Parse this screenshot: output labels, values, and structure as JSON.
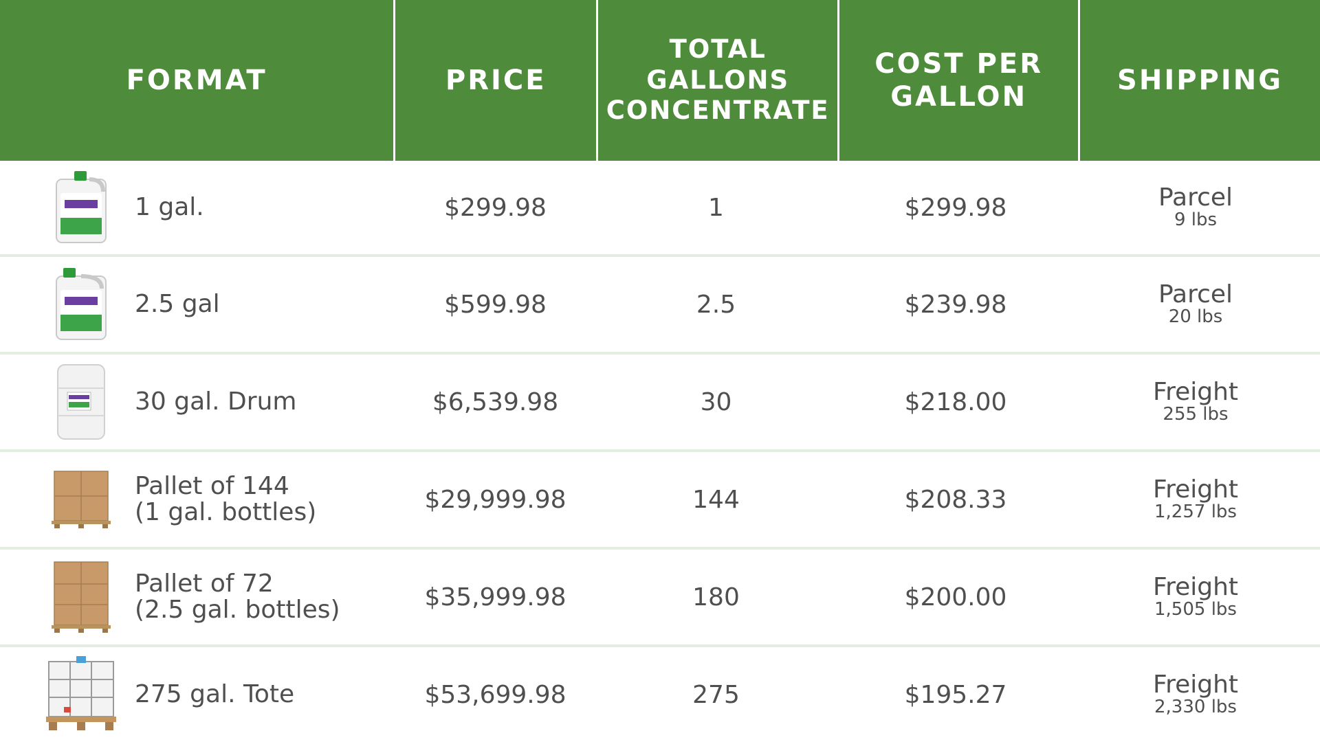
{
  "headers": {
    "format": "FORMAT",
    "price": "PRICE",
    "gallons": "TOTAL\nGALLONS\nCONCENTRATE",
    "cost": "COST PER\nGALLON",
    "shipping": "SHIPPING"
  },
  "colors": {
    "header_bg": "#4e8b3b",
    "header_text": "#ffffff",
    "row_divider": "#e3eee0",
    "body_text": "#4f4f4f"
  },
  "rows": [
    {
      "format": "1 gal.",
      "price": "$299.98",
      "gallons": "1",
      "cost": "$299.98",
      "ship_mode": "Parcel",
      "ship_weight": "9 lbs",
      "icon": "jug-1gal-icon"
    },
    {
      "format": "2.5 gal",
      "price": "$599.98",
      "gallons": "2.5",
      "cost": "$239.98",
      "ship_mode": "Parcel",
      "ship_weight": "20 lbs",
      "icon": "jug-2-5gal-icon"
    },
    {
      "format": "30 gal. Drum",
      "price": "$6,539.98",
      "gallons": "30",
      "cost": "$218.00",
      "ship_mode": "Freight",
      "ship_weight": "255 lbs",
      "icon": "drum-icon"
    },
    {
      "format": "Pallet of 144\n(1 gal. bottles)",
      "price": "$29,999.98",
      "gallons": "144",
      "cost": "$208.33",
      "ship_mode": "Freight",
      "ship_weight": "1,257 lbs",
      "icon": "pallet-144-icon"
    },
    {
      "format": "Pallet of 72\n(2.5 gal. bottles)",
      "price": "$35,999.98",
      "gallons": "180",
      "cost": "$200.00",
      "ship_mode": "Freight",
      "ship_weight": "1,505 lbs",
      "icon": "pallet-72-icon"
    },
    {
      "format": "275 gal. Tote",
      "price": "$53,699.98",
      "gallons": "275",
      "cost": "$195.27",
      "ship_mode": "Freight",
      "ship_weight": "2,330 lbs",
      "icon": "tote-icon"
    }
  ]
}
